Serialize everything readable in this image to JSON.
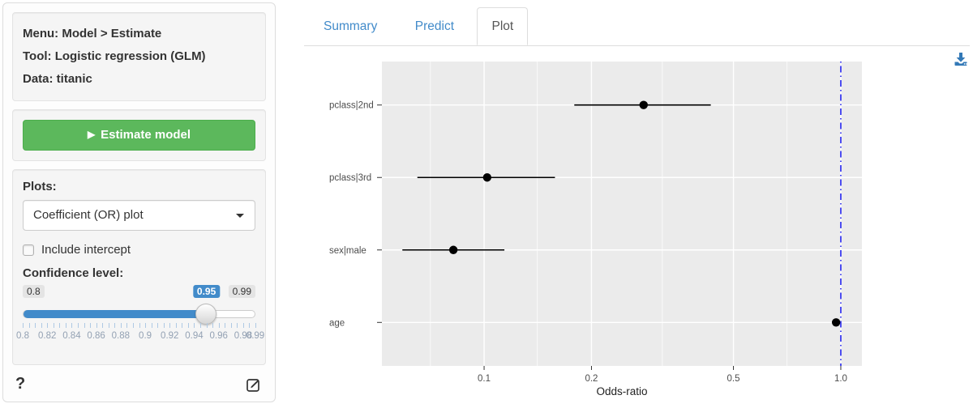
{
  "sidebar": {
    "info": {
      "menu_label": "Menu: Model > Estimate",
      "tool_label": "Tool: Logistic regression (GLM)",
      "data_label": "Data: titanic"
    },
    "estimate_button": {
      "label": "Estimate model",
      "icon": "play-icon",
      "color": "#5cb85c"
    },
    "plots": {
      "label": "Plots:",
      "selected_option": "Coefficient (OR) plot",
      "include_intercept": {
        "label": "Include intercept",
        "checked": false
      },
      "confidence": {
        "label": "Confidence level:",
        "min": 0.8,
        "max": 0.99,
        "value": 0.95,
        "min_label": "0.8",
        "value_label": "0.95",
        "max_label": "0.99",
        "grid_labels": [
          "0.8",
          "0.82",
          "0.84",
          "0.86",
          "0.88",
          "0.9",
          "0.92",
          "0.94",
          "0.96",
          "0.98",
          "0.99"
        ],
        "accent_color": "#428bca"
      }
    },
    "help_label": "?",
    "icons": {
      "help": "question-mark-icon",
      "edit": "edit-icon"
    }
  },
  "main": {
    "tabs": [
      {
        "label": "Summary",
        "active": false
      },
      {
        "label": "Predict",
        "active": false
      },
      {
        "label": "Plot",
        "active": true
      }
    ],
    "link_color": "#428bca",
    "download_icon": "download-icon",
    "download_color": "#3379b7"
  },
  "chart_data": {
    "type": "scatter",
    "title": "",
    "xlabel": "Odds-ratio",
    "ylabel": "",
    "x_scale": "log10",
    "x_domain": [
      0.0517,
      1.146
    ],
    "x_major_ticks": [
      0.1,
      0.2,
      0.5,
      1.0
    ],
    "x_major_tick_labels": [
      "0.1",
      "0.2",
      "0.5",
      "1.0"
    ],
    "x_minor_gridlines": [
      0.0707,
      0.141,
      0.316,
      0.707
    ],
    "categories": [
      "pclass|2nd",
      "pclass|3rd",
      "sex|male",
      "age"
    ],
    "series": [
      {
        "name": "odds-ratio with confidence interval",
        "points": [
          {
            "label": "pclass|2nd",
            "or": 0.28,
            "ci_low": 0.179,
            "ci_high": 0.432
          },
          {
            "label": "pclass|3rd",
            "or": 0.102,
            "ci_low": 0.065,
            "ci_high": 0.158
          },
          {
            "label": "sex|male",
            "or": 0.082,
            "ci_low": 0.059,
            "ci_high": 0.114
          },
          {
            "label": "age",
            "or": 0.97,
            "ci_low": 0.954,
            "ci_high": 0.987
          }
        ]
      }
    ],
    "reference_line": {
      "x": 1.0,
      "color": "#2626f0",
      "style": "dotdash"
    },
    "panel_bg": "#ebebeb",
    "grid_color": "#ffffff",
    "point_color": "#000000",
    "axis_text_color": "#4d4d4d",
    "legend": "none",
    "grid": "on"
  }
}
